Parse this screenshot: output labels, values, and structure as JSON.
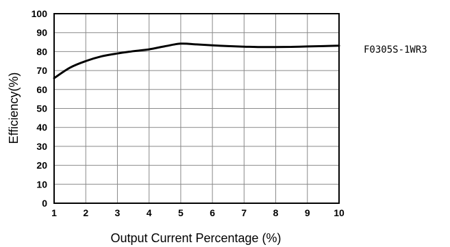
{
  "chart_data": {
    "type": "line",
    "title": "",
    "xlabel": "Output Current Percentage (%)",
    "ylabel": "Efficiency(%)",
    "xlim": [
      1,
      10
    ],
    "ylim": [
      0,
      100
    ],
    "x_ticks": [
      1,
      2,
      3,
      4,
      5,
      6,
      7,
      8,
      9,
      10
    ],
    "y_ticks": [
      0,
      10,
      20,
      30,
      40,
      50,
      60,
      70,
      80,
      90,
      100
    ],
    "grid": true,
    "legend_position": "right",
    "series": [
      {
        "name": "F0305S-1WR3",
        "color": "#000000",
        "x": [
          1,
          1.5,
          2,
          2.5,
          3,
          3.5,
          4,
          4.5,
          5,
          5.5,
          6,
          6.5,
          7,
          7.5,
          8,
          8.5,
          9,
          9.5,
          10
        ],
        "y": [
          66,
          71.5,
          75,
          77.5,
          79,
          80.2,
          81.2,
          82.8,
          84.2,
          83.8,
          83.3,
          82.9,
          82.6,
          82.4,
          82.4,
          82.5,
          82.7,
          82.9,
          83.1
        ]
      }
    ]
  }
}
